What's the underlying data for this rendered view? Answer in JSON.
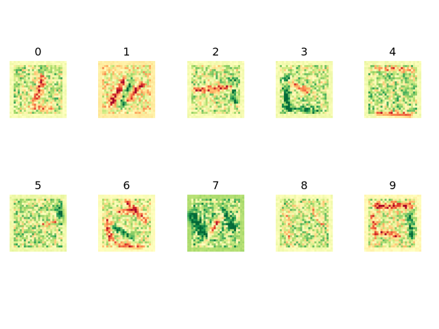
{
  "chart_data": {
    "type": "heatmap",
    "layout": "grid of 10 image panels, 2 rows x 5 columns",
    "colormap": "RdYlGn",
    "axes_visible": false,
    "grid": false,
    "legend": "none",
    "image_resolution": [
      28,
      28
    ],
    "panels": [
      {
        "title": "0",
        "pattern": "diagonal red stroke through center, green speckles around"
      },
      {
        "title": "1",
        "pattern": "orange/red diagonal strokes, green diagonal streak"
      },
      {
        "title": "2",
        "pattern": "red horizontal stroke across middle, green right edge"
      },
      {
        "title": "3",
        "pattern": "green left edge and bottom, red diagonal upper left"
      },
      {
        "title": "4",
        "pattern": "red top and bottom bands, green center"
      },
      {
        "title": "5",
        "pattern": "green speckles, dark green right edge"
      },
      {
        "title": "6",
        "pattern": "red ring with green interior"
      },
      {
        "title": "7",
        "pattern": "green left blob, red diagonal stroke"
      },
      {
        "title": "8",
        "pattern": "sparse red speckles, green center"
      },
      {
        "title": "9",
        "pattern": "red top arc and bottom, green interior"
      }
    ]
  }
}
